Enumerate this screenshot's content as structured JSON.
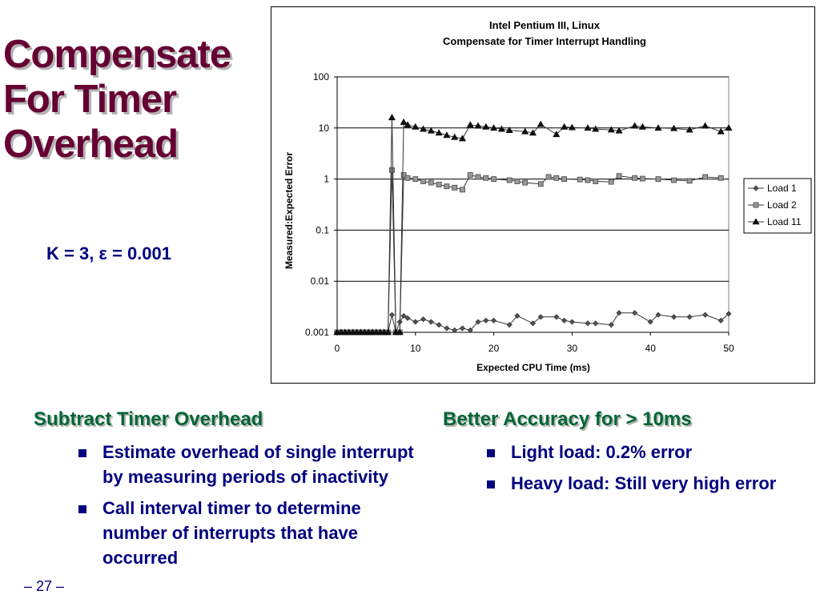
{
  "slide": {
    "title_lines": [
      "Compensate",
      "For Timer",
      "Overhead"
    ],
    "param_prefix": "K = 3, ",
    "param_epsilon": "ε",
    "param_suffix": " = 0.001",
    "page_number": "– 27 –",
    "colors": {
      "title": "#660033",
      "heading": "#006633",
      "body": "#000080"
    }
  },
  "left_section": {
    "heading": "Subtract Timer Overhead",
    "bullets": [
      "Estimate overhead of single interrupt by measuring periods of inactivity",
      "Call interval timer to determine number of interrupts that have occurred"
    ]
  },
  "right_section": {
    "heading": "Better Accuracy for > 10ms",
    "bullets": [
      "Light load: 0.2% error",
      "Heavy load: Still very high error"
    ]
  },
  "chart_data": {
    "type": "line",
    "title": "Intel Pentium III, Linux",
    "subtitle": "Compensate for Timer Interrupt Handling",
    "xlabel": "Expected CPU Time (ms)",
    "ylabel": "Measured:Expected Error",
    "xlim": [
      0,
      50
    ],
    "ylim": [
      0.001,
      100
    ],
    "y_scale": "log",
    "x_ticks": [
      0,
      10,
      20,
      30,
      40,
      50
    ],
    "y_ticks": [
      100,
      10,
      1,
      0.1,
      0.01,
      0.001
    ],
    "y_tick_labels": [
      "100",
      "10",
      "1",
      "0.1",
      "0.01",
      "0.001"
    ],
    "grid": "horizontal",
    "legend_position": "right",
    "series": [
      {
        "name": "Load 1",
        "marker": "diamond",
        "points": [
          [
            0,
            0.001
          ],
          [
            0.5,
            0.001
          ],
          [
            1,
            0.001
          ],
          [
            1.5,
            0.001
          ],
          [
            2,
            0.001
          ],
          [
            2.5,
            0.001
          ],
          [
            3,
            0.001
          ],
          [
            3.5,
            0.001
          ],
          [
            4,
            0.001
          ],
          [
            4.5,
            0.001
          ],
          [
            5,
            0.001
          ],
          [
            5.5,
            0.001
          ],
          [
            6,
            0.001
          ],
          [
            6.5,
            0.001
          ],
          [
            7,
            0.0022
          ],
          [
            7.5,
            0.001
          ],
          [
            8,
            0.0016
          ],
          [
            8.5,
            0.0021
          ],
          [
            9,
            0.0019
          ],
          [
            10,
            0.0016
          ],
          [
            11,
            0.0018
          ],
          [
            12,
            0.0016
          ],
          [
            13,
            0.0014
          ],
          [
            14,
            0.0012
          ],
          [
            15,
            0.0011
          ],
          [
            16,
            0.0012
          ],
          [
            17,
            0.0011
          ],
          [
            18,
            0.0016
          ],
          [
            19,
            0.0017
          ],
          [
            20,
            0.0017
          ],
          [
            22,
            0.0014
          ],
          [
            23,
            0.0021
          ],
          [
            25,
            0.0015
          ],
          [
            26,
            0.002
          ],
          [
            28,
            0.002
          ],
          [
            29,
            0.0017
          ],
          [
            30,
            0.0016
          ],
          [
            32,
            0.0015
          ],
          [
            33,
            0.0015
          ],
          [
            35,
            0.0014
          ],
          [
            36,
            0.0024
          ],
          [
            38,
            0.0024
          ],
          [
            40,
            0.0016
          ],
          [
            41,
            0.0022
          ],
          [
            43,
            0.002
          ],
          [
            45,
            0.002
          ],
          [
            47,
            0.0022
          ],
          [
            49,
            0.0017
          ],
          [
            50,
            0.0023
          ]
        ]
      },
      {
        "name": "Load 2",
        "marker": "square",
        "points": [
          [
            0,
            0.001
          ],
          [
            0.5,
            0.001
          ],
          [
            1,
            0.001
          ],
          [
            1.5,
            0.001
          ],
          [
            2,
            0.001
          ],
          [
            2.5,
            0.001
          ],
          [
            3,
            0.001
          ],
          [
            3.5,
            0.001
          ],
          [
            4,
            0.001
          ],
          [
            4.5,
            0.001
          ],
          [
            5,
            0.001
          ],
          [
            5.5,
            0.001
          ],
          [
            6,
            0.001
          ],
          [
            6.5,
            0.001
          ],
          [
            7,
            1.5
          ],
          [
            7.5,
            0.001
          ],
          [
            8,
            0.001
          ],
          [
            8.5,
            1.2
          ],
          [
            9,
            1.05
          ],
          [
            10,
            1
          ],
          [
            11,
            0.9
          ],
          [
            12,
            0.85
          ],
          [
            13,
            0.78
          ],
          [
            14,
            0.72
          ],
          [
            15,
            0.68
          ],
          [
            16,
            0.62
          ],
          [
            17,
            1.2
          ],
          [
            18,
            1.1
          ],
          [
            19,
            1.05
          ],
          [
            20,
            1
          ],
          [
            22,
            0.95
          ],
          [
            23,
            0.9
          ],
          [
            24,
            0.85
          ],
          [
            26,
            0.8
          ],
          [
            27,
            1.1
          ],
          [
            28,
            1.05
          ],
          [
            29,
            1
          ],
          [
            31,
            0.98
          ],
          [
            32,
            0.95
          ],
          [
            33,
            0.9
          ],
          [
            35,
            0.88
          ],
          [
            36,
            1.15
          ],
          [
            38,
            1.05
          ],
          [
            39,
            1.02
          ],
          [
            41,
            1
          ],
          [
            43,
            0.95
          ],
          [
            45,
            0.92
          ],
          [
            47,
            1.1
          ],
          [
            49,
            1.05
          ]
        ]
      },
      {
        "name": "Load 11",
        "marker": "triangle",
        "points": [
          [
            0,
            0.001
          ],
          [
            0.5,
            0.001
          ],
          [
            1,
            0.001
          ],
          [
            1.5,
            0.001
          ],
          [
            2,
            0.001
          ],
          [
            2.5,
            0.001
          ],
          [
            3,
            0.001
          ],
          [
            3.5,
            0.001
          ],
          [
            4,
            0.001
          ],
          [
            4.5,
            0.001
          ],
          [
            5,
            0.001
          ],
          [
            5.5,
            0.001
          ],
          [
            6,
            0.001
          ],
          [
            6.5,
            0.001
          ],
          [
            7,
            16
          ],
          [
            7.5,
            0.001
          ],
          [
            8,
            0.001
          ],
          [
            8.5,
            13
          ],
          [
            9,
            11.5
          ],
          [
            10,
            10.5
          ],
          [
            11,
            9.5
          ],
          [
            12,
            8.8
          ],
          [
            13,
            8
          ],
          [
            14,
            7.2
          ],
          [
            15,
            6.6
          ],
          [
            16,
            6.2
          ],
          [
            17,
            11.5
          ],
          [
            18,
            11
          ],
          [
            19,
            10.5
          ],
          [
            20,
            10
          ],
          [
            21,
            9.5
          ],
          [
            22,
            9
          ],
          [
            24,
            8.5
          ],
          [
            25,
            8
          ],
          [
            26,
            11.8
          ],
          [
            28,
            7.5
          ],
          [
            29,
            10.5
          ],
          [
            30,
            10.2
          ],
          [
            32,
            10
          ],
          [
            33,
            9.5
          ],
          [
            35,
            9.2
          ],
          [
            36,
            8.8
          ],
          [
            38,
            11
          ],
          [
            39,
            10.5
          ],
          [
            41,
            10
          ],
          [
            43,
            9.8
          ],
          [
            45,
            9.2
          ],
          [
            47,
            11
          ],
          [
            49,
            8.5
          ],
          [
            50,
            10
          ]
        ]
      }
    ]
  }
}
